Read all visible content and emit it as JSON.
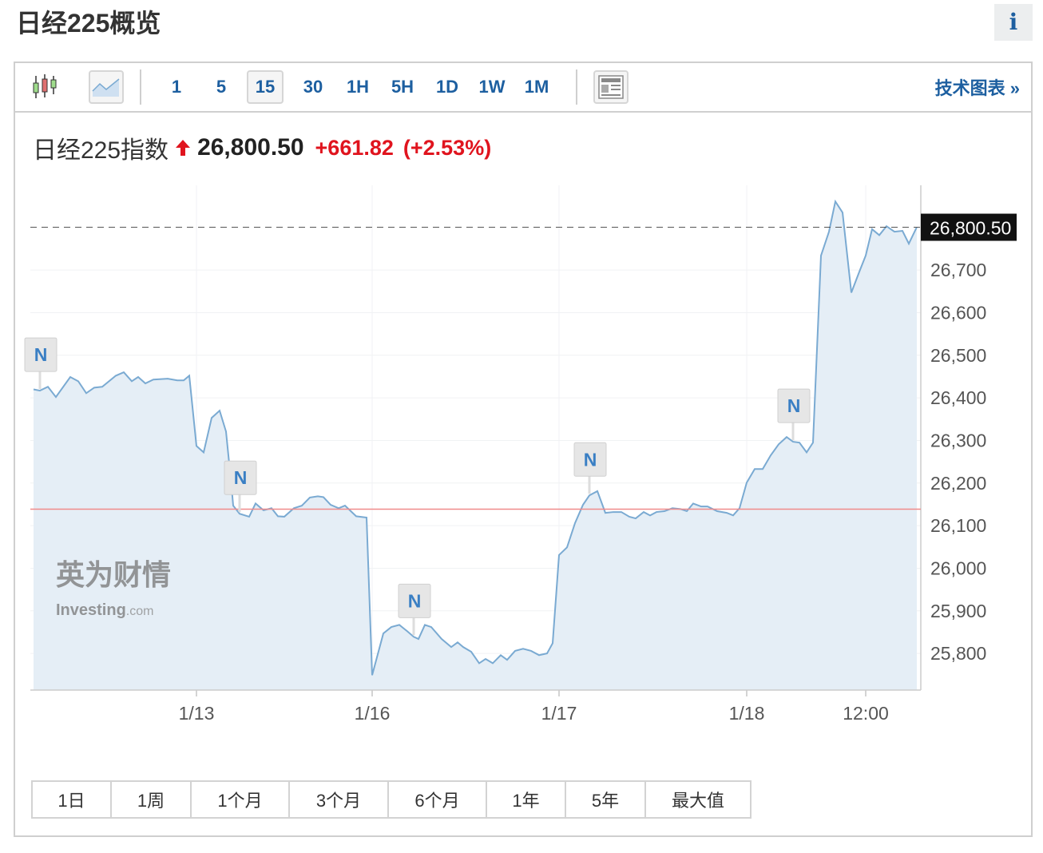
{
  "title": "日经225概览",
  "info_label": "i",
  "toolbar": {
    "chart_types": [
      {
        "icon": "candlestick-icon"
      },
      {
        "icon": "line-chart-icon",
        "selected": true
      }
    ],
    "intervals": [
      {
        "label": "1"
      },
      {
        "label": "5"
      },
      {
        "label": "15",
        "selected": true
      },
      {
        "label": "30"
      },
      {
        "label": "1H"
      },
      {
        "label": "5H"
      },
      {
        "label": "1D"
      },
      {
        "label": "1W"
      },
      {
        "label": "1M"
      }
    ],
    "layout_icon": "news-layout-icon",
    "tech_chart_label": "技术图表 »"
  },
  "quote": {
    "name": "日经225指数",
    "price": "26,800.50",
    "change": "+661.82",
    "change_pct": "(+2.53%)",
    "direction": "up",
    "up_color": "#e0141e"
  },
  "chart_data": {
    "type": "area",
    "line_color": "#7aaad2",
    "fill_color": "#e5eef6",
    "values": [
      26420,
      26417,
      26426,
      26402,
      26449,
      26439,
      26411,
      26424,
      26426,
      26452,
      26460,
      26439,
      26449,
      26434,
      26443,
      26445,
      26441,
      26441,
      26452,
      26287,
      26272,
      26353,
      26370,
      26321,
      26190,
      26147,
      26128,
      26121,
      26152,
      26136,
      26141,
      26122,
      26121,
      26141,
      26147,
      26166,
      26169,
      26167,
      26149,
      26141,
      26147,
      26122,
      26119,
      25749,
      25847,
      25862,
      25867,
      25852,
      25839,
      25834,
      25867,
      25862,
      25834,
      25815,
      25826,
      25815,
      25804,
      25777,
      25787,
      25777,
      25796,
      25785,
      25806,
      25811,
      25806,
      25796,
      25800,
      25824,
      26031,
      26049,
      26106,
      26149,
      26171,
      26181,
      26130,
      26132,
      26132,
      26121,
      26117,
      26132,
      26124,
      26132,
      26134,
      26141,
      26139,
      26134,
      26152,
      26145,
      26145,
      26134,
      26130,
      26124,
      26141,
      26201,
      26233,
      26233,
      26265,
      26291,
      26308,
      26297,
      26295,
      26272,
      26295,
      26734,
      26790,
      26861,
      26835,
      26647,
      26696,
      26734,
      26796,
      26782,
      26803,
      26790,
      26792,
      26762,
      26801
    ],
    "ylim": [
      25714,
      26899
    ],
    "yticks": [
      25800,
      25900,
      26000,
      26100,
      26200,
      26300,
      26400,
      26500,
      26600,
      26700
    ],
    "ytick_labels": [
      "25,800",
      "25,900",
      "26,000",
      "26,100",
      "26,200",
      "26,300",
      "26,400",
      "26,500",
      "26,600",
      "26,700"
    ],
    "xtick_labels": [
      "1/13",
      "1/16",
      "1/17",
      "1/18",
      "12:00"
    ],
    "xtick_index": [
      19,
      43,
      68,
      93,
      109
    ],
    "last_price": 26800.5,
    "last_price_label": "26,800.50",
    "prev_close": 26138.68,
    "prev_close_color": "#f08a8a",
    "news_markers": [
      {
        "index": 1,
        "label": "N"
      },
      {
        "index": 26,
        "label": "N"
      },
      {
        "index": 48,
        "label": "N"
      },
      {
        "index": 72,
        "label": "N"
      },
      {
        "index": 99,
        "label": "N"
      }
    ],
    "grid": true,
    "watermark": "英为财情 Investing.com"
  },
  "ranges": [
    {
      "label": "1日"
    },
    {
      "label": "1周"
    },
    {
      "label": "1个月"
    },
    {
      "label": "3个月"
    },
    {
      "label": "6个月"
    },
    {
      "label": "1年"
    },
    {
      "label": "5年"
    },
    {
      "label": "最大值"
    }
  ]
}
